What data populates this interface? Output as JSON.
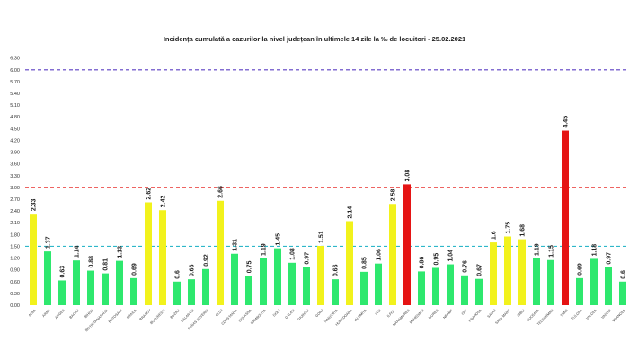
{
  "chart_data": {
    "type": "bar",
    "title": "Incidența cumulată a cazurilor la nivel județean în ultimele 14 zile   la ‰ de locuitori  - 25.02.2021",
    "xlabel": "",
    "ylabel": "",
    "ylim": [
      0,
      6.3
    ],
    "yticks": [
      "0.00",
      "0.30",
      "0.60",
      "0.90",
      "1.20",
      "1.50",
      "1.80",
      "2.10",
      "2.40",
      "2.70",
      "3.00",
      "3.30",
      "3.60",
      "3.90",
      "4.20",
      "4.50",
      "4.80",
      "5.10",
      "5.40",
      "5.70",
      "6.00",
      "6.30"
    ],
    "grid": false,
    "categories": [
      "ALBA",
      "ARAD",
      "ARGES",
      "BACAU",
      "BIHOR",
      "BISTRITA NASAUD",
      "BOTOSANI",
      "BRAILA",
      "BRASOV",
      "BUCURESTI",
      "BUZAU",
      "CALARASI",
      "CARAS SEVERIN",
      "CLUJ",
      "CONSTANTA",
      "COVASNA",
      "DAMBOVITA",
      "DOLJ",
      "GALATI",
      "GIURGIU",
      "GORJ",
      "HARGHITA",
      "HUNEDOARA",
      "IALOMITA",
      "IASI",
      "ILFOV",
      "MARAMURES",
      "MEHEDINTI",
      "MURES",
      "NEAMT",
      "OLT",
      "PRAHOVA",
      "SALAJ",
      "SATU MARE",
      "SIBIU",
      "SUCEAVA",
      "TELEORMAN",
      "TIMIS",
      "TULCEA",
      "VALCEA",
      "VASLUI",
      "VRANCEA"
    ],
    "values": [
      2.33,
      1.37,
      0.63,
      1.14,
      0.88,
      0.81,
      1.13,
      0.69,
      2.62,
      2.42,
      0.6,
      0.66,
      0.92,
      2.66,
      1.31,
      0.75,
      1.19,
      1.45,
      1.08,
      0.97,
      1.51,
      0.66,
      2.14,
      0.85,
      1.06,
      2.58,
      3.08,
      0.86,
      0.95,
      1.04,
      0.76,
      0.67,
      1.6,
      1.75,
      1.68,
      1.19,
      1.15,
      4.45,
      0.69,
      1.18,
      0.97,
      0.6
    ],
    "value_labels": [
      "2.33",
      "1.37",
      "0.63",
      "1.14",
      "0.88",
      "0.81",
      "1.13",
      "0.69",
      "2.62",
      "2.42",
      "0.6",
      "0.66",
      "0.92",
      "2.66",
      "1.31",
      "0.75",
      "1.19",
      "1.45",
      "1.08",
      "0.97",
      "1.51",
      "0.66",
      "2.14",
      "0.85",
      "1.06",
      "2.58",
      "3.08",
      "0.86",
      "0.95",
      "1.04",
      "0.76",
      "0.67",
      "1.6",
      "1.75",
      "1.68",
      "1.19",
      "1.15",
      "4.45",
      "0.69",
      "1.18",
      "0.97",
      "0.6"
    ],
    "reference_lines": [
      {
        "value": 6.0,
        "color": "#5b3fc4"
      },
      {
        "value": 3.0,
        "color": "#e8302e"
      },
      {
        "value": 1.5,
        "color": "#2fb7c9"
      }
    ],
    "colors": {
      "low": "#2ee86e",
      "medium": "#f2f21c",
      "high": "#e51414"
    },
    "thresholds": [
      1.5,
      3.0
    ]
  }
}
